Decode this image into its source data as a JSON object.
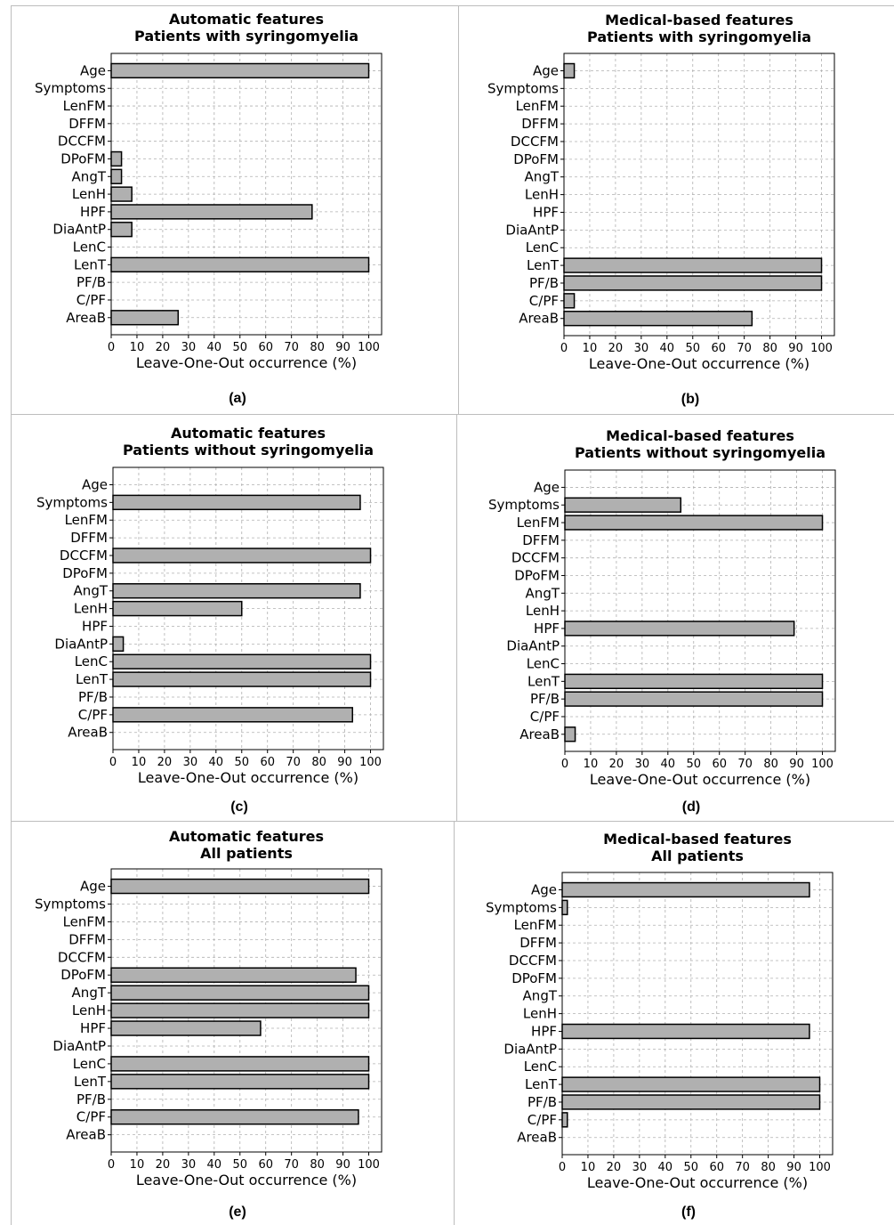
{
  "chart_data": [
    {
      "type": "bar",
      "orientation": "horizontal",
      "panel_label": "(a)",
      "title": "Automatic features\nPatients with syringomyelia",
      "xlabel": "Leave-One-Out occurrence (%)",
      "ylabel": "",
      "xlim": [
        0,
        105
      ],
      "xticks": [
        0,
        10,
        20,
        30,
        40,
        50,
        60,
        70,
        80,
        90,
        100
      ],
      "grid": true,
      "categories": [
        "Age",
        "Symptoms",
        "LenFM",
        "DFFM",
        "DCCFM",
        "DPoFM",
        "AngT",
        "LenH",
        "HPF",
        "DiaAntP",
        "LenC",
        "LenT",
        "PF/B",
        "C/PF",
        "AreaB"
      ],
      "values": [
        100,
        0,
        0,
        0,
        0,
        4,
        4,
        8,
        78,
        8,
        0,
        100,
        0,
        0,
        26
      ]
    },
    {
      "type": "bar",
      "orientation": "horizontal",
      "panel_label": "(b)",
      "title": "Medical-based features\nPatients with syringomyelia",
      "xlabel": "Leave-One-Out occurrence (%)",
      "ylabel": "",
      "xlim": [
        0,
        105
      ],
      "xticks": [
        0,
        10,
        20,
        30,
        40,
        50,
        60,
        70,
        80,
        90,
        100
      ],
      "grid": true,
      "categories": [
        "Age",
        "Symptoms",
        "LenFM",
        "DFFM",
        "DCCFM",
        "DPoFM",
        "AngT",
        "LenH",
        "HPF",
        "DiaAntP",
        "LenC",
        "LenT",
        "PF/B",
        "C/PF",
        "AreaB"
      ],
      "values": [
        4,
        0,
        0,
        0,
        0,
        0,
        0,
        0,
        0,
        0,
        0,
        100,
        100,
        4,
        73
      ]
    },
    {
      "type": "bar",
      "orientation": "horizontal",
      "panel_label": "(c)",
      "title": "Automatic features\nPatients without syringomyelia",
      "xlabel": "Leave-One-Out occurrence (%)",
      "ylabel": "",
      "xlim": [
        0,
        105
      ],
      "xticks": [
        0,
        10,
        20,
        30,
        40,
        50,
        60,
        70,
        80,
        90,
        100
      ],
      "grid": true,
      "categories": [
        "Age",
        "Symptoms",
        "LenFM",
        "DFFM",
        "DCCFM",
        "DPoFM",
        "AngT",
        "LenH",
        "HPF",
        "DiaAntP",
        "LenC",
        "LenT",
        "PF/B",
        "C/PF",
        "AreaB"
      ],
      "values": [
        0,
        96,
        0,
        0,
        100,
        0,
        96,
        50,
        0,
        4,
        100,
        100,
        0,
        93,
        0
      ]
    },
    {
      "type": "bar",
      "orientation": "horizontal",
      "panel_label": "(d)",
      "title": "Medical-based features\nPatients without syringomyelia",
      "xlabel": "Leave-One-Out occurrence (%)",
      "ylabel": "",
      "xlim": [
        0,
        105
      ],
      "xticks": [
        0,
        10,
        20,
        30,
        40,
        50,
        60,
        70,
        80,
        90,
        100
      ],
      "grid": true,
      "categories": [
        "Age",
        "Symptoms",
        "LenFM",
        "DFFM",
        "DCCFM",
        "DPoFM",
        "AngT",
        "LenH",
        "HPF",
        "DiaAntP",
        "LenC",
        "LenT",
        "PF/B",
        "C/PF",
        "AreaB"
      ],
      "values": [
        0,
        45,
        100,
        0,
        0,
        0,
        0,
        0,
        89,
        0,
        0,
        100,
        100,
        0,
        4
      ]
    },
    {
      "type": "bar",
      "orientation": "horizontal",
      "panel_label": "(e)",
      "title": "Automatic features\nAll patients",
      "xlabel": "Leave-One-Out occurrence (%)",
      "ylabel": "",
      "xlim": [
        0,
        105
      ],
      "xticks": [
        0,
        10,
        20,
        30,
        40,
        50,
        60,
        70,
        80,
        90,
        100
      ],
      "grid": true,
      "categories": [
        "Age",
        "Symptoms",
        "LenFM",
        "DFFM",
        "DCCFM",
        "DPoFM",
        "AngT",
        "LenH",
        "HPF",
        "DiaAntP",
        "LenC",
        "LenT",
        "PF/B",
        "C/PF",
        "AreaB"
      ],
      "values": [
        100,
        0,
        0,
        0,
        0,
        95,
        100,
        100,
        58,
        0,
        100,
        100,
        0,
        96,
        0
      ]
    },
    {
      "type": "bar",
      "orientation": "horizontal",
      "panel_label": "(f)",
      "title": "Medical-based features\nAll patients",
      "xlabel": "Leave-One-Out occurrence (%)",
      "ylabel": "",
      "xlim": [
        0,
        105
      ],
      "xticks": [
        0,
        10,
        20,
        30,
        40,
        50,
        60,
        70,
        80,
        90,
        100
      ],
      "grid": true,
      "categories": [
        "Age",
        "Symptoms",
        "LenFM",
        "DFFM",
        "DCCFM",
        "DPoFM",
        "AngT",
        "LenH",
        "HPF",
        "DiaAntP",
        "LenC",
        "LenT",
        "PF/B",
        "C/PF",
        "AreaB"
      ],
      "values": [
        96,
        2,
        0,
        0,
        0,
        0,
        0,
        0,
        96,
        0,
        0,
        100,
        100,
        2,
        0
      ]
    }
  ],
  "colors": {
    "bar_fill": "#b0b0b0",
    "bar_edge": "#000000",
    "grid": "#b0b0b0",
    "divider": "#bdbdbd"
  }
}
